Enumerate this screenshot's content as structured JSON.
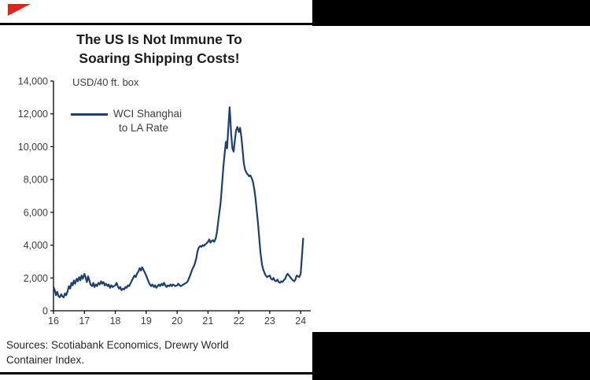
{
  "page": {
    "title_line1": "The US Is Not Immune To",
    "title_line2": "Soaring Shipping Costs!",
    "axis_unit_label": "USD/40 ft. box",
    "legend": {
      "label_line1": "WCI Shanghai",
      "label_line2": "to LA Rate"
    },
    "sources_line1": "Sources: Scotiabank Economics, Drewry World",
    "sources_line2": "Container Index.",
    "colors": {
      "line": "#1c3f6e",
      "accent_red": "#e2231a",
      "rule_black": "#000000",
      "label_gray": "#3d3d3d"
    }
  },
  "chart_data": {
    "type": "line",
    "title": "The US Is Not Immune To Soaring Shipping Costs!",
    "ylabel": "USD/40 ft. box",
    "series_name": "WCI Shanghai to LA Rate",
    "legend_position": "top-left-inside",
    "grid": false,
    "xlim": [
      16,
      24.3
    ],
    "ylim": [
      0,
      14000
    ],
    "x_ticks": [
      "16",
      "17",
      "18",
      "19",
      "20",
      "21",
      "22",
      "23",
      "24"
    ],
    "y_ticks": [
      "0",
      "2,000",
      "4,000",
      "6,000",
      "8,000",
      "10,000",
      "12,000",
      "14,000"
    ],
    "points": [
      [
        16.0,
        1450
      ],
      [
        16.04,
        1250
      ],
      [
        16.08,
        950
      ],
      [
        16.12,
        1150
      ],
      [
        16.16,
        900
      ],
      [
        16.2,
        820
      ],
      [
        16.25,
        1000
      ],
      [
        16.29,
        870
      ],
      [
        16.33,
        820
      ],
      [
        16.37,
        1050
      ],
      [
        16.41,
        950
      ],
      [
        16.45,
        1150
      ],
      [
        16.5,
        1500
      ],
      [
        16.54,
        1350
      ],
      [
        16.58,
        1700
      ],
      [
        16.62,
        1550
      ],
      [
        16.66,
        1850
      ],
      [
        16.7,
        1650
      ],
      [
        16.75,
        1950
      ],
      [
        16.79,
        1800
      ],
      [
        16.83,
        2050
      ],
      [
        16.87,
        1850
      ],
      [
        16.91,
        2150
      ],
      [
        16.95,
        1950
      ],
      [
        17.0,
        2250
      ],
      [
        17.04,
        2050
      ],
      [
        17.08,
        1750
      ],
      [
        17.12,
        2100
      ],
      [
        17.16,
        1850
      ],
      [
        17.2,
        1600
      ],
      [
        17.25,
        1500
      ],
      [
        17.29,
        1700
      ],
      [
        17.33,
        1450
      ],
      [
        17.37,
        1600
      ],
      [
        17.41,
        1500
      ],
      [
        17.45,
        1700
      ],
      [
        17.5,
        1600
      ],
      [
        17.54,
        1800
      ],
      [
        17.58,
        1650
      ],
      [
        17.62,
        1750
      ],
      [
        17.66,
        1550
      ],
      [
        17.7,
        1650
      ],
      [
        17.75,
        1500
      ],
      [
        17.79,
        1600
      ],
      [
        17.83,
        1400
      ],
      [
        17.87,
        1550
      ],
      [
        17.91,
        1450
      ],
      [
        17.95,
        1500
      ],
      [
        18.0,
        1550
      ],
      [
        18.04,
        1700
      ],
      [
        18.08,
        1500
      ],
      [
        18.12,
        1350
      ],
      [
        18.16,
        1450
      ],
      [
        18.2,
        1250
      ],
      [
        18.25,
        1350
      ],
      [
        18.29,
        1300
      ],
      [
        18.33,
        1450
      ],
      [
        18.37,
        1400
      ],
      [
        18.41,
        1550
      ],
      [
        18.45,
        1500
      ],
      [
        18.5,
        1700
      ],
      [
        18.54,
        1850
      ],
      [
        18.58,
        2000
      ],
      [
        18.62,
        2150
      ],
      [
        18.66,
        2050
      ],
      [
        18.7,
        2250
      ],
      [
        18.75,
        2400
      ],
      [
        18.79,
        2600
      ],
      [
        18.83,
        2450
      ],
      [
        18.87,
        2650
      ],
      [
        18.91,
        2500
      ],
      [
        18.95,
        2350
      ],
      [
        19.0,
        2150
      ],
      [
        19.04,
        1950
      ],
      [
        19.08,
        1750
      ],
      [
        19.12,
        1600
      ],
      [
        19.16,
        1500
      ],
      [
        19.2,
        1600
      ],
      [
        19.25,
        1450
      ],
      [
        19.29,
        1550
      ],
      [
        19.33,
        1400
      ],
      [
        19.37,
        1500
      ],
      [
        19.41,
        1600
      ],
      [
        19.45,
        1500
      ],
      [
        19.5,
        1650
      ],
      [
        19.54,
        1550
      ],
      [
        19.58,
        1700
      ],
      [
        19.62,
        1550
      ],
      [
        19.66,
        1450
      ],
      [
        19.7,
        1550
      ],
      [
        19.75,
        1500
      ],
      [
        19.79,
        1600
      ],
      [
        19.83,
        1500
      ],
      [
        19.87,
        1600
      ],
      [
        19.91,
        1550
      ],
      [
        19.95,
        1500
      ],
      [
        20.0,
        1550
      ],
      [
        20.04,
        1650
      ],
      [
        20.08,
        1550
      ],
      [
        20.12,
        1500
      ],
      [
        20.16,
        1550
      ],
      [
        20.2,
        1600
      ],
      [
        20.25,
        1650
      ],
      [
        20.29,
        1700
      ],
      [
        20.33,
        1750
      ],
      [
        20.37,
        1900
      ],
      [
        20.41,
        2100
      ],
      [
        20.45,
        2300
      ],
      [
        20.5,
        2550
      ],
      [
        20.54,
        2700
      ],
      [
        20.58,
        2900
      ],
      [
        20.62,
        3200
      ],
      [
        20.66,
        3600
      ],
      [
        20.7,
        3850
      ],
      [
        20.75,
        3950
      ],
      [
        20.79,
        3900
      ],
      [
        20.83,
        4000
      ],
      [
        20.87,
        3950
      ],
      [
        20.91,
        4050
      ],
      [
        20.95,
        4100
      ],
      [
        21.0,
        4200
      ],
      [
        21.04,
        4350
      ],
      [
        21.08,
        4150
      ],
      [
        21.12,
        4250
      ],
      [
        21.16,
        4300
      ],
      [
        21.2,
        4200
      ],
      [
        21.25,
        4400
      ],
      [
        21.29,
        4800
      ],
      [
        21.33,
        5400
      ],
      [
        21.37,
        6000
      ],
      [
        21.41,
        6600
      ],
      [
        21.45,
        7600
      ],
      [
        21.5,
        8800
      ],
      [
        21.54,
        9600
      ],
      [
        21.58,
        10300
      ],
      [
        21.62,
        9900
      ],
      [
        21.66,
        11200
      ],
      [
        21.7,
        12400
      ],
      [
        21.72,
        11800
      ],
      [
        21.75,
        10800
      ],
      [
        21.79,
        9900
      ],
      [
        21.83,
        9700
      ],
      [
        21.87,
        10400
      ],
      [
        21.91,
        11000
      ],
      [
        21.95,
        11200
      ],
      [
        22.0,
        10900
      ],
      [
        22.04,
        11150
      ],
      [
        22.08,
        10600
      ],
      [
        22.12,
        9800
      ],
      [
        22.16,
        9000
      ],
      [
        22.2,
        8600
      ],
      [
        22.25,
        8400
      ],
      [
        22.29,
        8300
      ],
      [
        22.33,
        8200
      ],
      [
        22.37,
        8250
      ],
      [
        22.41,
        8100
      ],
      [
        22.45,
        7900
      ],
      [
        22.5,
        7400
      ],
      [
        22.54,
        6800
      ],
      [
        22.58,
        6100
      ],
      [
        22.62,
        5300
      ],
      [
        22.66,
        4400
      ],
      [
        22.7,
        3500
      ],
      [
        22.75,
        2800
      ],
      [
        22.79,
        2500
      ],
      [
        22.83,
        2300
      ],
      [
        22.87,
        2150
      ],
      [
        22.91,
        2050
      ],
      [
        22.95,
        2100
      ],
      [
        23.0,
        2150
      ],
      [
        23.04,
        1950
      ],
      [
        23.08,
        1900
      ],
      [
        23.12,
        2000
      ],
      [
        23.16,
        1850
      ],
      [
        23.2,
        1800
      ],
      [
        23.25,
        1900
      ],
      [
        23.29,
        1750
      ],
      [
        23.33,
        1700
      ],
      [
        23.37,
        1800
      ],
      [
        23.41,
        1750
      ],
      [
        23.45,
        1850
      ],
      [
        23.5,
        1950
      ],
      [
        23.54,
        2150
      ],
      [
        23.58,
        2250
      ],
      [
        23.62,
        2150
      ],
      [
        23.66,
        2050
      ],
      [
        23.7,
        1950
      ],
      [
        23.75,
        1850
      ],
      [
        23.79,
        1800
      ],
      [
        23.83,
        1900
      ],
      [
        23.87,
        2150
      ],
      [
        23.91,
        2100
      ],
      [
        23.95,
        2050
      ],
      [
        24.0,
        2250
      ],
      [
        24.04,
        3300
      ],
      [
        24.08,
        4400
      ]
    ]
  }
}
